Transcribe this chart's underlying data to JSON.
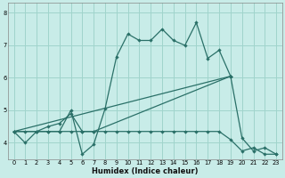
{
  "xlabel": "Humidex (Indice chaleur)",
  "background_color": "#c8ece8",
  "grid_color": "#a0d4cc",
  "line_color": "#2a7068",
  "xlim": [
    -0.5,
    23.5
  ],
  "ylim": [
    3.5,
    8.3
  ],
  "xticks": [
    0,
    1,
    2,
    3,
    4,
    5,
    6,
    7,
    8,
    9,
    10,
    11,
    12,
    13,
    14,
    15,
    16,
    17,
    18,
    19,
    20,
    21,
    22,
    23
  ],
  "yticks": [
    4,
    5,
    6,
    7,
    8
  ],
  "line1_x": [
    0,
    1,
    2,
    3,
    4,
    5,
    6,
    7,
    8,
    9,
    10,
    11,
    12,
    13,
    14,
    15,
    16,
    17,
    18,
    19,
    20,
    21,
    22,
    23
  ],
  "line1_y": [
    4.35,
    4.0,
    4.35,
    4.35,
    4.35,
    5.0,
    3.65,
    3.95,
    5.05,
    6.65,
    7.35,
    7.15,
    7.15,
    7.5,
    7.15,
    7.0,
    7.7,
    6.6,
    6.85,
    6.05,
    4.15,
    3.75,
    3.85,
    3.65
  ],
  "line2_x": [
    0,
    1,
    2,
    3,
    4,
    5,
    6,
    7,
    8,
    9,
    10,
    11,
    12,
    13,
    14,
    15,
    16,
    17,
    18,
    19,
    20,
    21,
    22,
    23
  ],
  "line2_y": [
    4.35,
    4.35,
    4.35,
    4.35,
    4.35,
    4.35,
    4.35,
    4.35,
    4.35,
    4.35,
    4.35,
    4.35,
    4.35,
    4.35,
    4.35,
    4.35,
    4.35,
    4.35,
    4.35,
    4.1,
    3.75,
    3.85,
    3.65,
    3.65
  ],
  "line3_x": [
    0,
    2,
    3,
    4,
    5,
    6,
    7,
    19
  ],
  "line3_y": [
    4.35,
    4.35,
    4.5,
    4.6,
    4.9,
    4.35,
    4.35,
    6.05
  ],
  "line4_x": [
    0,
    19
  ],
  "line4_y": [
    4.35,
    6.05
  ]
}
